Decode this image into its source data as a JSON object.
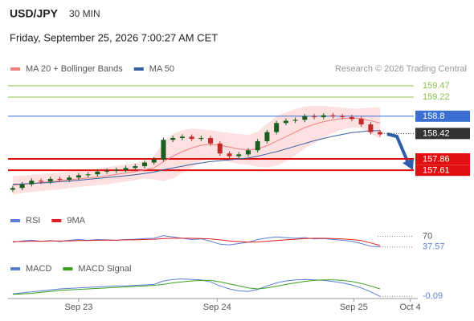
{
  "header": {
    "symbol": "USD/JPY",
    "timeframe": "30 MIN",
    "datetime": "Friday, September 25, 2026 7:00:27 AM CET"
  },
  "chart_data": [
    {
      "type": "candlestick",
      "attribution": "Research © 2026 Trading Central",
      "up_color": "#1b5e20",
      "down_color": "#c62828",
      "open": [
        157.18,
        157.22,
        157.3,
        157.38,
        157.36,
        157.42,
        157.4,
        157.45,
        157.5,
        157.52,
        157.58,
        157.6,
        157.62,
        157.66,
        157.7,
        157.78,
        157.85,
        158.28,
        158.32,
        158.35,
        158.3,
        158.32,
        158.2,
        157.98,
        157.92,
        157.96,
        158.05,
        158.25,
        158.45,
        158.65,
        158.7,
        158.72,
        158.8,
        158.78,
        158.82,
        158.8,
        158.78,
        158.74,
        158.62,
        158.45
      ],
      "high": [
        157.27,
        157.35,
        157.43,
        157.43,
        157.47,
        157.47,
        157.5,
        157.55,
        157.57,
        157.63,
        157.65,
        157.67,
        157.71,
        157.75,
        157.83,
        157.9,
        158.33,
        158.37,
        158.4,
        158.4,
        158.37,
        158.37,
        158.25,
        158.03,
        158.01,
        158.1,
        158.3,
        158.5,
        158.7,
        158.75,
        158.77,
        158.85,
        158.85,
        158.87,
        158.87,
        158.85,
        158.83,
        158.79,
        158.67,
        158.5
      ],
      "low": [
        157.13,
        157.17,
        157.25,
        157.31,
        157.31,
        157.35,
        157.35,
        157.4,
        157.45,
        157.47,
        157.53,
        157.55,
        157.57,
        157.61,
        157.65,
        157.73,
        157.8,
        158.23,
        158.27,
        158.25,
        158.25,
        158.15,
        157.93,
        157.87,
        157.87,
        157.91,
        158.0,
        158.2,
        158.4,
        158.6,
        158.65,
        158.67,
        158.73,
        158.73,
        158.75,
        158.73,
        158.69,
        158.57,
        158.4,
        158.35
      ],
      "close": [
        157.22,
        157.3,
        157.38,
        157.36,
        157.42,
        157.4,
        157.45,
        157.5,
        157.52,
        157.58,
        157.6,
        157.62,
        157.66,
        157.7,
        157.78,
        157.85,
        158.28,
        158.32,
        158.35,
        158.3,
        158.32,
        158.2,
        157.98,
        157.92,
        157.96,
        158.05,
        158.25,
        158.45,
        158.65,
        158.7,
        158.72,
        158.8,
        158.78,
        158.82,
        158.8,
        158.78,
        158.74,
        158.62,
        158.45,
        158.4
      ],
      "series": [
        {
          "name": "MA 20 + Bollinger Bands",
          "color": "#f08080",
          "band_color": "#fde0e0",
          "values": [
            157.28,
            157.3,
            157.32,
            157.34,
            157.36,
            157.38,
            157.4,
            157.42,
            157.44,
            157.46,
            157.49,
            157.52,
            157.55,
            157.58,
            157.62,
            157.66,
            157.8,
            157.92,
            158.02,
            158.1,
            158.16,
            158.18,
            158.16,
            158.12,
            158.08,
            158.06,
            158.08,
            158.15,
            158.25,
            158.35,
            158.45,
            158.55,
            158.62,
            158.68,
            158.72,
            158.75,
            158.76,
            158.75,
            158.7,
            158.65
          ],
          "upper": [
            157.48,
            157.48,
            157.5,
            157.52,
            157.54,
            157.55,
            157.57,
            157.6,
            157.62,
            157.64,
            157.67,
            157.7,
            157.73,
            157.76,
            157.8,
            157.9,
            158.22,
            158.4,
            158.48,
            158.52,
            158.5,
            158.48,
            158.45,
            158.42,
            158.4,
            158.38,
            158.45,
            158.62,
            158.78,
            158.88,
            158.95,
            159.0,
            159.02,
            159.02,
            159.0,
            158.98,
            158.96,
            158.96,
            158.98,
            158.98
          ],
          "lower": [
            157.08,
            157.12,
            157.14,
            157.16,
            157.18,
            157.2,
            157.23,
            157.25,
            157.27,
            157.29,
            157.31,
            157.34,
            157.37,
            157.4,
            157.44,
            157.42,
            157.38,
            157.44,
            157.56,
            157.68,
            157.82,
            157.88,
            157.86,
            157.8,
            157.76,
            157.74,
            157.7,
            157.68,
            157.72,
            157.82,
            157.95,
            158.1,
            158.22,
            158.34,
            158.44,
            158.52,
            158.56,
            158.54,
            158.42,
            158.32
          ]
        },
        {
          "name": "MA 50",
          "color": "#3a5f9f",
          "values": [
            157.3,
            157.31,
            157.32,
            157.33,
            157.34,
            157.36,
            157.37,
            157.39,
            157.41,
            157.43,
            157.45,
            157.47,
            157.49,
            157.51,
            157.54,
            157.57,
            157.62,
            157.66,
            157.7,
            157.74,
            157.77,
            157.8,
            157.82,
            157.84,
            157.86,
            157.88,
            157.92,
            157.97,
            158.02,
            158.08,
            158.14,
            158.2,
            158.26,
            158.31,
            158.36,
            158.4,
            158.44,
            158.46,
            158.48,
            158.48
          ]
        }
      ],
      "levels": [
        {
          "value": 159.47,
          "color": "#8bc34a",
          "line": "thin",
          "label_style": "text"
        },
        {
          "value": 159.22,
          "color": "#8bc34a",
          "line": "thin",
          "label_style": "text"
        },
        {
          "value": 158.8,
          "color": "#3b6fd1",
          "line": "thin",
          "label_style": "box"
        },
        {
          "value": 158.42,
          "color": "#333333",
          "line": "dotted",
          "label_style": "box"
        },
        {
          "value": 157.86,
          "color": "#e01010",
          "line": "thick",
          "label_style": "box"
        },
        {
          "value": 157.61,
          "color": "#e01010",
          "line": "thick",
          "label_style": "box"
        }
      ],
      "ylim": [
        157.03,
        159.68
      ],
      "xlim": [
        -0.5,
        43
      ]
    },
    {
      "type": "line",
      "series": [
        {
          "name": "RSI",
          "color": "#5b7fd6",
          "values": [
            52,
            56,
            58,
            55,
            57,
            54,
            58,
            60,
            58,
            60,
            59,
            58,
            60,
            61,
            63,
            64,
            72,
            68,
            64,
            60,
            62,
            55,
            46,
            44,
            48,
            52,
            60,
            65,
            68,
            66,
            64,
            66,
            62,
            63,
            60,
            58,
            55,
            48,
            40,
            37.57
          ]
        },
        {
          "name": "9MA",
          "color": "#e02020",
          "values": [
            54,
            54,
            55,
            55,
            56,
            56,
            56,
            57,
            57,
            58,
            58,
            58,
            59,
            59,
            60,
            61,
            63,
            64,
            64,
            64,
            63,
            62,
            59,
            56,
            54,
            52,
            53,
            55,
            57,
            59,
            61,
            63,
            64,
            64,
            63,
            62,
            60,
            57,
            50,
            42
          ]
        }
      ],
      "ylim": [
        25,
        100
      ],
      "yticks": [
        70
      ],
      "xlim": [
        -0.5,
        43
      ]
    },
    {
      "type": "line",
      "series": [
        {
          "name": "MACD",
          "color": "#5b7fd6",
          "values": [
            -0.04,
            -0.02,
            0.0,
            0.02,
            0.04,
            0.06,
            0.07,
            0.08,
            0.09,
            0.1,
            0.11,
            0.12,
            0.12,
            0.13,
            0.14,
            0.15,
            0.22,
            0.25,
            0.26,
            0.25,
            0.24,
            0.2,
            0.12,
            0.06,
            0.02,
            0.01,
            0.05,
            0.12,
            0.18,
            0.22,
            0.24,
            0.25,
            0.24,
            0.23,
            0.21,
            0.18,
            0.14,
            0.08,
            0.0,
            -0.09
          ]
        },
        {
          "name": "MACD Signal",
          "color": "#3aa020",
          "values": [
            -0.05,
            -0.04,
            -0.03,
            -0.01,
            0.01,
            0.03,
            0.04,
            0.05,
            0.06,
            0.07,
            0.08,
            0.09,
            0.1,
            0.11,
            0.12,
            0.13,
            0.15,
            0.18,
            0.2,
            0.22,
            0.23,
            0.23,
            0.2,
            0.16,
            0.12,
            0.08,
            0.06,
            0.08,
            0.11,
            0.15,
            0.18,
            0.21,
            0.23,
            0.24,
            0.24,
            0.23,
            0.21,
            0.17,
            0.12,
            0.06
          ]
        }
      ],
      "ylim": [
        -0.15,
        0.35
      ],
      "xlim": [
        -0.5,
        43
      ],
      "xticks": [
        {
          "value": 7,
          "label": "Sep 23"
        },
        {
          "value": 21.7,
          "label": "Sep 24"
        },
        {
          "value": 36.2,
          "label": "Sep 25"
        },
        {
          "value": 42.2,
          "label": "Oct 4"
        }
      ]
    }
  ]
}
